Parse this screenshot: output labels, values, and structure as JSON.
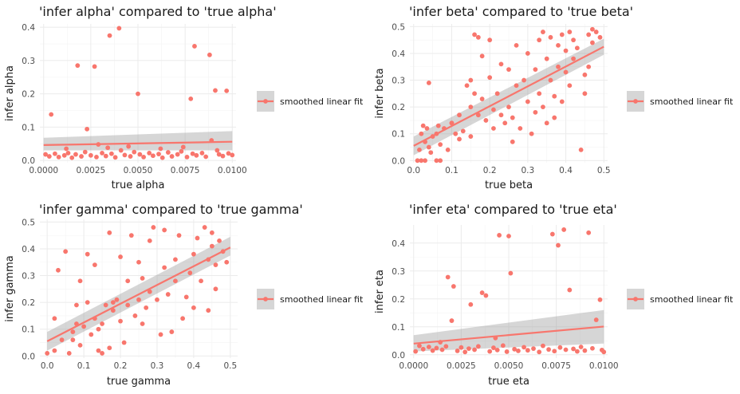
{
  "colors": {
    "point": "#F8766D",
    "line": "#F8766D",
    "band": "#999999",
    "grid_major": "#ebebeb",
    "grid_minor": "#f4f4f4",
    "background": "#ffffff"
  },
  "chart_data": [
    {
      "type": "scatter",
      "title": "'infer alpha' compared to 'true alpha'",
      "xlabel": "true alpha",
      "ylabel": "infer alpha",
      "xlim": [
        -0.0002,
        0.0102
      ],
      "ylim": [
        -0.007,
        0.41
      ],
      "xticks": [
        0,
        0.0025,
        0.005,
        0.0075,
        0.01
      ],
      "xtick_labels": [
        "0.0000",
        "0.0025",
        "0.0050",
        "0.0075",
        "0.0100"
      ],
      "yticks": [
        0,
        0.1,
        0.2,
        0.3,
        0.4
      ],
      "ytick_labels": [
        "0.0",
        "0.1",
        "0.2",
        "0.3",
        "0.4"
      ],
      "grid": true,
      "legend": {
        "position": "right",
        "label": "smoothed linear fit"
      },
      "points": [
        [
          0.0004,
          0.138
        ],
        [
          0.0018,
          0.285
        ],
        [
          0.0023,
          0.094
        ],
        [
          0.0027,
          0.282
        ],
        [
          0.0035,
          0.375
        ],
        [
          0.004,
          0.397
        ],
        [
          0.005,
          0.2
        ],
        [
          0.0078,
          0.185
        ],
        [
          0.008,
          0.343
        ],
        [
          0.0088,
          0.317
        ],
        [
          0.0091,
          0.21
        ],
        [
          0.0097,
          0.209
        ],
        [
          0.0089,
          0.06
        ],
        [
          0.0029,
          0.048
        ],
        [
          0.0001,
          0.018
        ],
        [
          0.0003,
          0.012
        ],
        [
          0.0006,
          0.02
        ],
        [
          0.0008,
          0.01
        ],
        [
          0.0011,
          0.015
        ],
        [
          0.0013,
          0.022
        ],
        [
          0.0015,
          0.008
        ],
        [
          0.0017,
          0.018
        ],
        [
          0.002,
          0.012
        ],
        [
          0.0022,
          0.025
        ],
        [
          0.0025,
          0.015
        ],
        [
          0.0028,
          0.01
        ],
        [
          0.0031,
          0.022
        ],
        [
          0.0033,
          0.013
        ],
        [
          0.0036,
          0.02
        ],
        [
          0.0038,
          0.009
        ],
        [
          0.0041,
          0.03
        ],
        [
          0.0043,
          0.016
        ],
        [
          0.0046,
          0.012
        ],
        [
          0.0048,
          0.025
        ],
        [
          0.0051,
          0.018
        ],
        [
          0.0053,
          0.01
        ],
        [
          0.0056,
          0.022
        ],
        [
          0.0058,
          0.014
        ],
        [
          0.0061,
          0.019
        ],
        [
          0.0063,
          0.008
        ],
        [
          0.0066,
          0.024
        ],
        [
          0.0068,
          0.012
        ],
        [
          0.0071,
          0.018
        ],
        [
          0.0073,
          0.027
        ],
        [
          0.0076,
          0.01
        ],
        [
          0.0079,
          0.02
        ],
        [
          0.0081,
          0.015
        ],
        [
          0.0084,
          0.022
        ],
        [
          0.0086,
          0.011
        ],
        [
          0.0093,
          0.018
        ],
        [
          0.0095,
          0.013
        ],
        [
          0.0098,
          0.021
        ],
        [
          0.01,
          0.016
        ],
        [
          0.0012,
          0.035
        ],
        [
          0.0034,
          0.038
        ],
        [
          0.0045,
          0.042
        ],
        [
          0.0062,
          0.035
        ],
        [
          0.0074,
          0.04
        ],
        [
          0.0092,
          0.03
        ]
      ],
      "fit": {
        "x": [
          0.0,
          0.01
        ],
        "y": [
          0.046,
          0.056
        ],
        "se_lower": [
          0.03,
          0.03
        ],
        "se_upper": [
          0.068,
          0.088
        ]
      }
    },
    {
      "type": "scatter",
      "title": "'infer beta' compared to 'true beta'",
      "xlabel": "true beta",
      "ylabel": "infer beta",
      "xlim": [
        -0.01,
        0.51
      ],
      "ylim": [
        -0.008,
        0.51
      ],
      "xticks": [
        0,
        0.1,
        0.2,
        0.3,
        0.4,
        0.5
      ],
      "xtick_labels": [
        "0.0",
        "0.1",
        "0.2",
        "0.3",
        "0.4",
        "0.5"
      ],
      "yticks": [
        0,
        0.1,
        0.2,
        0.3,
        0.4,
        0.5
      ],
      "ytick_labels": [
        "0.0",
        "0.1",
        "0.2",
        "0.3",
        "0.4",
        "0.5"
      ],
      "grid": true,
      "legend": {
        "position": "right",
        "label": "smoothed linear fit"
      },
      "points": [
        [
          0.01,
          0.0
        ],
        [
          0.02,
          0.0
        ],
        [
          0.03,
          0.0
        ],
        [
          0.06,
          0.0
        ],
        [
          0.07,
          0.0
        ],
        [
          0.015,
          0.04
        ],
        [
          0.02,
          0.1
        ],
        [
          0.025,
          0.13
        ],
        [
          0.03,
          0.07
        ],
        [
          0.035,
          0.12
        ],
        [
          0.04,
          0.05
        ],
        [
          0.04,
          0.29
        ],
        [
          0.045,
          0.03
        ],
        [
          0.05,
          0.09
        ],
        [
          0.06,
          0.1
        ],
        [
          0.065,
          0.13
        ],
        [
          0.07,
          0.06
        ],
        [
          0.08,
          0.12
        ],
        [
          0.09,
          0.04
        ],
        [
          0.1,
          0.14
        ],
        [
          0.11,
          0.1
        ],
        [
          0.12,
          0.17
        ],
        [
          0.12,
          0.08
        ],
        [
          0.13,
          0.11
        ],
        [
          0.14,
          0.28
        ],
        [
          0.15,
          0.2
        ],
        [
          0.15,
          0.09
        ],
        [
          0.16,
          0.47
        ],
        [
          0.16,
          0.25
        ],
        [
          0.17,
          0.46
        ],
        [
          0.17,
          0.17
        ],
        [
          0.18,
          0.39
        ],
        [
          0.18,
          0.23
        ],
        [
          0.19,
          0.15
        ],
        [
          0.2,
          0.45
        ],
        [
          0.2,
          0.31
        ],
        [
          0.21,
          0.19
        ],
        [
          0.21,
          0.12
        ],
        [
          0.22,
          0.25
        ],
        [
          0.23,
          0.36
        ],
        [
          0.23,
          0.17
        ],
        [
          0.24,
          0.14
        ],
        [
          0.25,
          0.34
        ],
        [
          0.25,
          0.2
        ],
        [
          0.26,
          0.07
        ],
        [
          0.26,
          0.16
        ],
        [
          0.27,
          0.43
        ],
        [
          0.27,
          0.28
        ],
        [
          0.28,
          0.12
        ],
        [
          0.29,
          0.3
        ],
        [
          0.3,
          0.4
        ],
        [
          0.3,
          0.22
        ],
        [
          0.31,
          0.1
        ],
        [
          0.32,
          0.34
        ],
        [
          0.32,
          0.18
        ],
        [
          0.33,
          0.45
        ],
        [
          0.33,
          0.25
        ],
        [
          0.34,
          0.48
        ],
        [
          0.34,
          0.2
        ],
        [
          0.35,
          0.38
        ],
        [
          0.35,
          0.14
        ],
        [
          0.36,
          0.46
        ],
        [
          0.36,
          0.3
        ],
        [
          0.37,
          0.24
        ],
        [
          0.37,
          0.16
        ],
        [
          0.38,
          0.43
        ],
        [
          0.38,
          0.35
        ],
        [
          0.39,
          0.47
        ],
        [
          0.39,
          0.22
        ],
        [
          0.4,
          0.41
        ],
        [
          0.4,
          0.33
        ],
        [
          0.41,
          0.48
        ],
        [
          0.41,
          0.28
        ],
        [
          0.42,
          0.45
        ],
        [
          0.42,
          0.38
        ],
        [
          0.43,
          0.42
        ],
        [
          0.44,
          0.04
        ],
        [
          0.45,
          0.32
        ],
        [
          0.45,
          0.25
        ],
        [
          0.46,
          0.47
        ],
        [
          0.46,
          0.35
        ],
        [
          0.47,
          0.49
        ],
        [
          0.47,
          0.44
        ],
        [
          0.48,
          0.48
        ],
        [
          0.49,
          0.46
        ],
        [
          0.15,
          0.3
        ],
        [
          0.1,
          0.14
        ]
      ],
      "fit": {
        "x": [
          0.0,
          0.5
        ],
        "y": [
          0.055,
          0.425
        ],
        "se_lower": [
          0.02,
          0.395
        ],
        "se_upper": [
          0.09,
          0.455
        ]
      }
    },
    {
      "type": "scatter",
      "title": "'infer gamma' compared to 'true gamma'",
      "xlabel": "true gamma",
      "ylabel": "infer gamma",
      "xlim": [
        -0.02,
        0.52
      ],
      "ylim": [
        -0.008,
        0.51
      ],
      "xticks": [
        0,
        0.1,
        0.2,
        0.3,
        0.4,
        0.5
      ],
      "xtick_labels": [
        "0.0",
        "0.1",
        "0.2",
        "0.3",
        "0.4",
        "0.5"
      ],
      "yticks": [
        0,
        0.1,
        0.2,
        0.3,
        0.4,
        0.5
      ],
      "ytick_labels": [
        "0.0",
        "0.1",
        "0.2",
        "0.3",
        "0.4",
        "0.5"
      ],
      "grid": true,
      "legend": {
        "position": "right",
        "label": "smoothed linear fit"
      },
      "points": [
        [
          0.0,
          0.01
        ],
        [
          0.02,
          0.02
        ],
        [
          0.02,
          0.14
        ],
        [
          0.03,
          0.32
        ],
        [
          0.04,
          0.06
        ],
        [
          0.05,
          0.39
        ],
        [
          0.06,
          0.01
        ],
        [
          0.07,
          0.09
        ],
        [
          0.08,
          0.12
        ],
        [
          0.08,
          0.19
        ],
        [
          0.09,
          0.28
        ],
        [
          0.09,
          0.04
        ],
        [
          0.1,
          0.11
        ],
        [
          0.11,
          0.2
        ],
        [
          0.12,
          0.08
        ],
        [
          0.13,
          0.14
        ],
        [
          0.13,
          0.34
        ],
        [
          0.14,
          0.1
        ],
        [
          0.15,
          0.01
        ],
        [
          0.15,
          0.12
        ],
        [
          0.16,
          0.19
        ],
        [
          0.17,
          0.46
        ],
        [
          0.17,
          0.03
        ],
        [
          0.18,
          0.17
        ],
        [
          0.19,
          0.21
        ],
        [
          0.2,
          0.37
        ],
        [
          0.2,
          0.13
        ],
        [
          0.21,
          0.05
        ],
        [
          0.22,
          0.28
        ],
        [
          0.22,
          0.19
        ],
        [
          0.23,
          0.45
        ],
        [
          0.24,
          0.15
        ],
        [
          0.25,
          0.21
        ],
        [
          0.25,
          0.35
        ],
        [
          0.26,
          0.29
        ],
        [
          0.27,
          0.18
        ],
        [
          0.28,
          0.43
        ],
        [
          0.28,
          0.24
        ],
        [
          0.29,
          0.48
        ],
        [
          0.3,
          0.21
        ],
        [
          0.31,
          0.08
        ],
        [
          0.32,
          0.33
        ],
        [
          0.32,
          0.47
        ],
        [
          0.33,
          0.23
        ],
        [
          0.34,
          0.09
        ],
        [
          0.35,
          0.36
        ],
        [
          0.35,
          0.28
        ],
        [
          0.36,
          0.45
        ],
        [
          0.37,
          0.14
        ],
        [
          0.38,
          0.22
        ],
        [
          0.39,
          0.31
        ],
        [
          0.4,
          0.18
        ],
        [
          0.4,
          0.38
        ],
        [
          0.41,
          0.44
        ],
        [
          0.42,
          0.28
        ],
        [
          0.43,
          0.48
        ],
        [
          0.44,
          0.17
        ],
        [
          0.44,
          0.36
        ],
        [
          0.45,
          0.46
        ],
        [
          0.46,
          0.34
        ],
        [
          0.46,
          0.25
        ],
        [
          0.47,
          0.43
        ],
        [
          0.48,
          0.39
        ],
        [
          0.49,
          0.35
        ],
        [
          0.45,
          0.41
        ],
        [
          0.11,
          0.38
        ],
        [
          0.07,
          0.06
        ],
        [
          0.14,
          0.02
        ],
        [
          0.18,
          0.2
        ],
        [
          0.26,
          0.12
        ]
      ],
      "fit": {
        "x": [
          0.0,
          0.5
        ],
        "y": [
          0.055,
          0.405
        ],
        "se_lower": [
          0.02,
          0.375
        ],
        "se_upper": [
          0.09,
          0.445
        ]
      }
    },
    {
      "type": "scatter",
      "title": "'infer eta' compared to 'true eta'",
      "xlabel": "true eta",
      "ylabel": "infer eta",
      "xlim": [
        -0.0002,
        0.0102
      ],
      "ylim": [
        -0.012,
        0.465
      ],
      "xticks": [
        0,
        0.0025,
        0.005,
        0.0075,
        0.01
      ],
      "xtick_labels": [
        "0.0000",
        "0.0025",
        "0.0050",
        "0.0075",
        "0.0100"
      ],
      "yticks": [
        0,
        0.1,
        0.2,
        0.3,
        0.4
      ],
      "ytick_labels": [
        "0.0",
        "0.1",
        "0.2",
        "0.3",
        "0.4"
      ],
      "grid": true,
      "legend": {
        "position": "right",
        "label": "smoothed linear fit"
      },
      "points": [
        [
          0.0018,
          0.278
        ],
        [
          0.0021,
          0.245
        ],
        [
          0.002,
          0.122
        ],
        [
          0.003,
          0.18
        ],
        [
          0.0036,
          0.222
        ],
        [
          0.0038,
          0.212
        ],
        [
          0.0045,
          0.428
        ],
        [
          0.005,
          0.425
        ],
        [
          0.0051,
          0.292
        ],
        [
          0.0073,
          0.432
        ],
        [
          0.0076,
          0.392
        ],
        [
          0.0079,
          0.448
        ],
        [
          0.0082,
          0.232
        ],
        [
          0.0092,
          0.437
        ],
        [
          0.0098,
          0.197
        ],
        [
          0.0096,
          0.125
        ],
        [
          0.0003,
          0.032
        ],
        [
          0.0005,
          0.02
        ],
        [
          0.0008,
          0.028
        ],
        [
          0.001,
          0.015
        ],
        [
          0.0012,
          0.024
        ],
        [
          0.0015,
          0.018
        ],
        [
          0.0017,
          0.03
        ],
        [
          0.0023,
          0.014
        ],
        [
          0.0025,
          0.026
        ],
        [
          0.0027,
          0.01
        ],
        [
          0.0029,
          0.022
        ],
        [
          0.0032,
          0.018
        ],
        [
          0.0034,
          0.03
        ],
        [
          0.004,
          0.012
        ],
        [
          0.0042,
          0.025
        ],
        [
          0.0044,
          0.017
        ],
        [
          0.0047,
          0.033
        ],
        [
          0.0049,
          0.011
        ],
        [
          0.0053,
          0.02
        ],
        [
          0.0055,
          0.014
        ],
        [
          0.0058,
          0.027
        ],
        [
          0.006,
          0.016
        ],
        [
          0.0063,
          0.022
        ],
        [
          0.0066,
          0.01
        ],
        [
          0.0068,
          0.032
        ],
        [
          0.0071,
          0.019
        ],
        [
          0.0074,
          0.013
        ],
        [
          0.0077,
          0.026
        ],
        [
          0.008,
          0.018
        ],
        [
          0.0084,
          0.021
        ],
        [
          0.0086,
          0.012
        ],
        [
          0.0088,
          0.028
        ],
        [
          0.009,
          0.015
        ],
        [
          0.0094,
          0.023
        ],
        [
          0.0099,
          0.017
        ],
        [
          0.01,
          0.01
        ],
        [
          0.0001,
          0.012
        ],
        [
          0.0014,
          0.045
        ],
        [
          0.0043,
          0.06
        ]
      ],
      "fit": {
        "x": [
          0.0,
          0.01
        ],
        "y": [
          0.04,
          0.101
        ],
        "se_lower": [
          0.012,
          0.04
        ],
        "se_upper": [
          0.07,
          0.16
        ]
      }
    }
  ]
}
